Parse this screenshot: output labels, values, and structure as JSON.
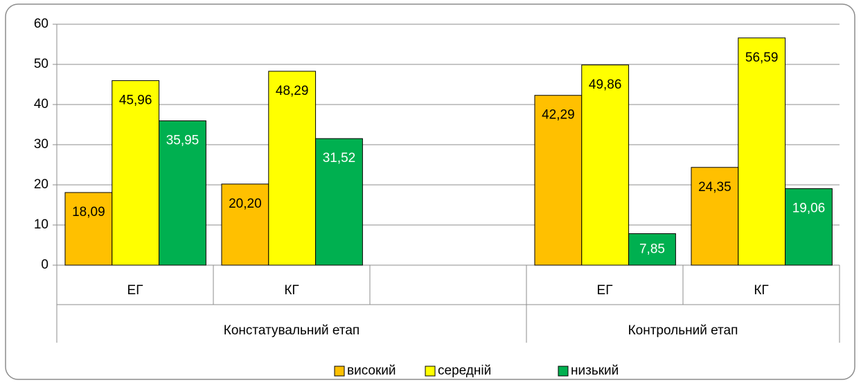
{
  "chart_data": {
    "type": "bar",
    "categories": [
      "ЕГ",
      "КГ",
      null,
      "ЕГ",
      "КГ"
    ],
    "groups": [
      {
        "name": "Констатувальний етап",
        "span": 3
      },
      {
        "name": "Контрольний етап",
        "span": 2
      }
    ],
    "series": [
      {
        "name": "високий",
        "color": "#ffc000",
        "label_color": "#000000",
        "values": [
          18.09,
          20.2,
          null,
          42.29,
          24.35
        ],
        "value_labels": [
          "18,09",
          "20,20",
          null,
          "42,29",
          "24,35"
        ]
      },
      {
        "name": "середній",
        "color": "#ffff00",
        "label_color": "#000000",
        "values": [
          45.96,
          48.29,
          null,
          49.86,
          56.59
        ],
        "value_labels": [
          "45,96",
          "48,29",
          null,
          "49,86",
          "56,59"
        ]
      },
      {
        "name": "низький",
        "color": "#00b050",
        "label_color": "#ffffff",
        "values": [
          35.95,
          31.52,
          null,
          7.85,
          19.06
        ],
        "value_labels": [
          "35,95",
          "31,52",
          null,
          "7,85",
          "19,06"
        ]
      }
    ],
    "ylim": [
      0,
      60
    ],
    "yticks": [
      0,
      10,
      20,
      30,
      40,
      50,
      60
    ],
    "grid": true,
    "legend": "bottom"
  }
}
